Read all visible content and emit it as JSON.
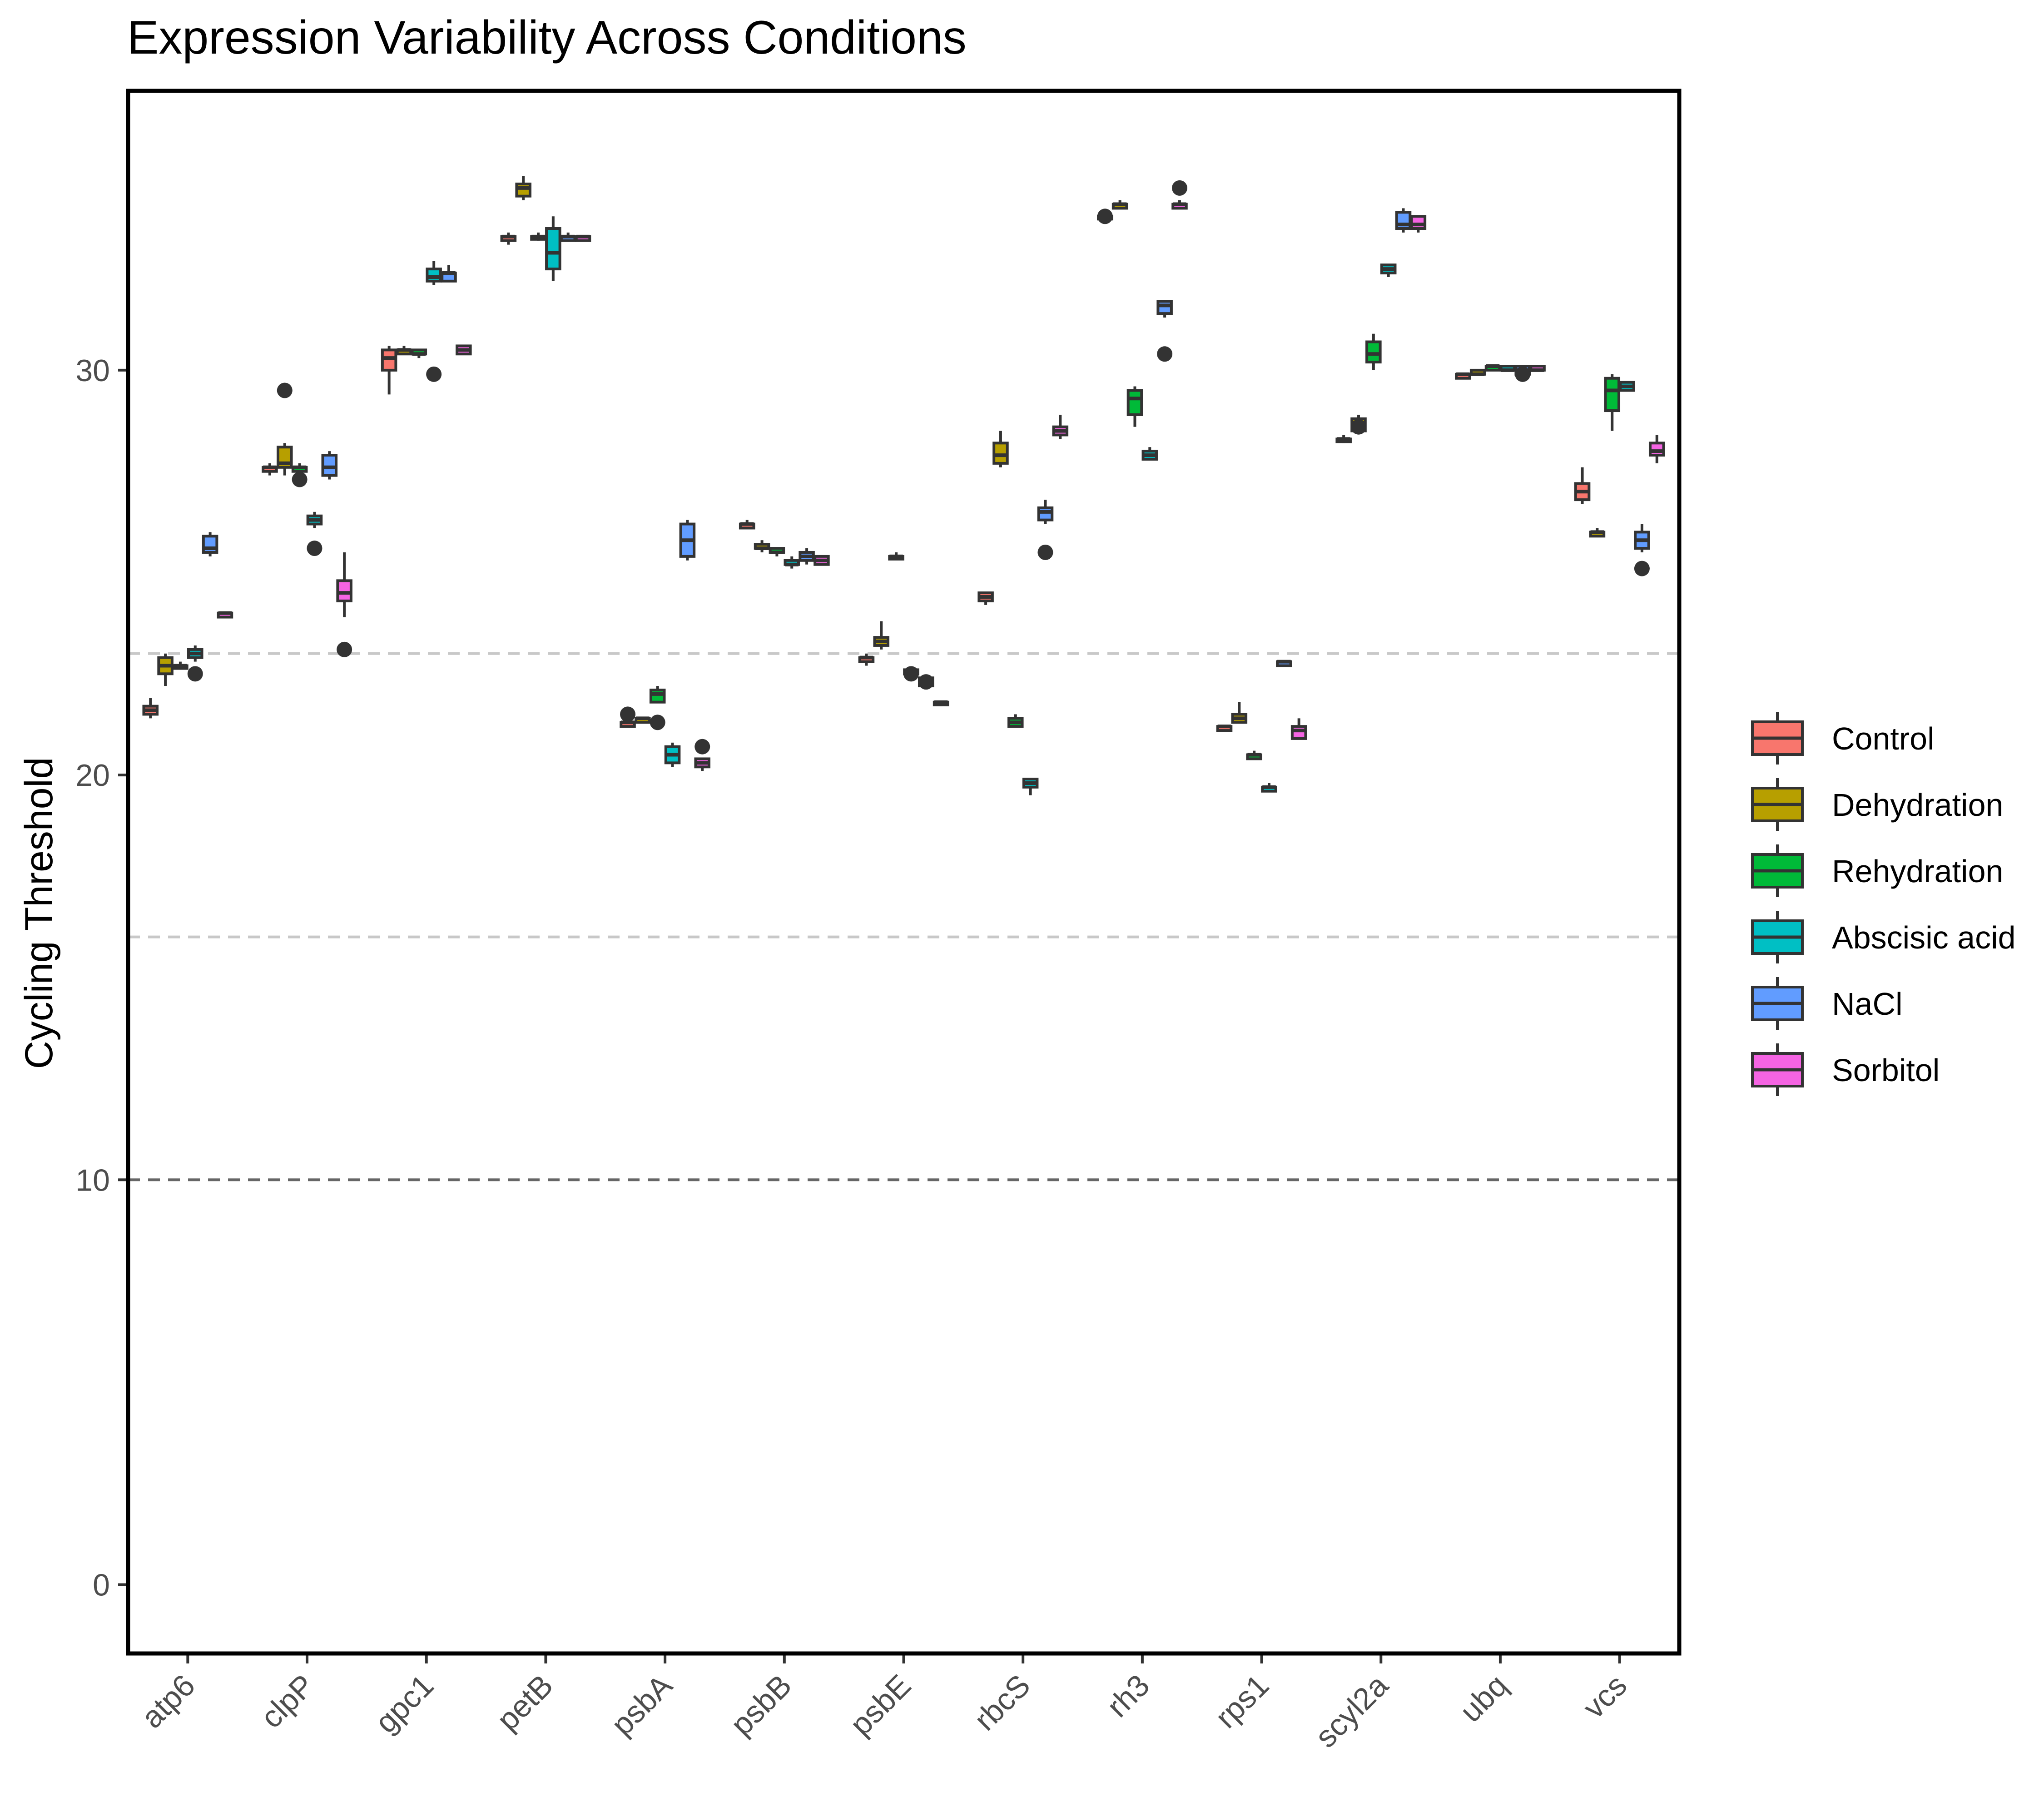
{
  "chart_data": {
    "type": "box",
    "title": "Expression Variability Across Conditions",
    "xlabel": "",
    "ylabel": "Cycling Threshold",
    "ylim": [
      -1.7,
      36.9
    ],
    "yticks": [
      0,
      10,
      20,
      30
    ],
    "grid": false,
    "legend_position": "right",
    "reference_lines": [
      {
        "y": 10,
        "color": "#666666"
      },
      {
        "y": 16,
        "color": "#c8c8c8"
      },
      {
        "y": 23,
        "color": "#c8c8c8"
      }
    ],
    "categories": [
      "atp6",
      "clpP",
      "gpc1",
      "petB",
      "psbA",
      "psbB",
      "psbE",
      "rbcS",
      "rh3",
      "rps1",
      "scyl2a",
      "ubq",
      "vcs"
    ],
    "series": [
      {
        "name": "Control",
        "color": "#F8766D",
        "boxes": [
          {
            "min": 21.4,
            "q1": 21.5,
            "median": 21.6,
            "q3": 21.7,
            "max": 21.9
          },
          {
            "min": 27.4,
            "q1": 27.5,
            "median": 27.6,
            "q3": 27.6,
            "max": 27.7
          },
          {
            "min": 29.4,
            "q1": 30.0,
            "median": 30.3,
            "q3": 30.5,
            "max": 30.6
          },
          {
            "min": 33.1,
            "q1": 33.2,
            "median": 33.3,
            "q3": 33.3,
            "max": 33.4
          },
          {
            "min": 21.2,
            "q1": 21.2,
            "median": 21.3,
            "q3": 21.3,
            "max": 21.4,
            "outliers": [
              21.5
            ]
          },
          {
            "min": 26.1,
            "q1": 26.1,
            "median": 26.2,
            "q3": 26.2,
            "max": 26.3
          },
          {
            "min": 22.7,
            "q1": 22.8,
            "median": 22.9,
            "q3": 22.9,
            "max": 23.0
          },
          {
            "min": 24.2,
            "q1": 24.3,
            "median": 24.4,
            "q3": 24.5,
            "max": 24.5
          },
          {
            "min": 33.8,
            "q1": 33.8,
            "median": 33.8,
            "q3": 33.8,
            "max": 33.8,
            "outliers": [
              33.8
            ]
          },
          {
            "min": 21.1,
            "q1": 21.1,
            "median": 21.2,
            "q3": 21.2,
            "max": 21.2
          },
          {
            "min": 28.2,
            "q1": 28.3,
            "median": 28.3,
            "q3": 28.3,
            "max": 28.4
          },
          {
            "min": 29.8,
            "q1": 29.8,
            "median": 29.9,
            "q3": 29.9,
            "max": 29.9
          },
          {
            "min": 26.7,
            "q1": 26.8,
            "median": 27.0,
            "q3": 27.2,
            "max": 27.6
          }
        ]
      },
      {
        "name": "Dehydration",
        "color": "#B79F00",
        "boxes": [
          {
            "min": 22.2,
            "q1": 22.5,
            "median": 22.7,
            "q3": 22.9,
            "max": 23.0
          },
          {
            "min": 27.4,
            "q1": 27.6,
            "median": 27.7,
            "q3": 28.1,
            "max": 28.2,
            "outliers": [
              29.5
            ]
          },
          {
            "min": 30.4,
            "q1": 30.4,
            "median": 30.5,
            "q3": 30.5,
            "max": 30.6
          },
          {
            "min": 34.2,
            "q1": 34.3,
            "median": 34.5,
            "q3": 34.6,
            "max": 34.8
          },
          {
            "min": 21.3,
            "q1": 21.3,
            "median": 21.4,
            "q3": 21.4,
            "max": 21.4
          },
          {
            "min": 25.5,
            "q1": 25.6,
            "median": 25.6,
            "q3": 25.7,
            "max": 25.8
          },
          {
            "min": 23.1,
            "q1": 23.2,
            "median": 23.3,
            "q3": 23.4,
            "max": 23.8
          },
          {
            "min": 27.6,
            "q1": 27.7,
            "median": 27.9,
            "q3": 28.2,
            "max": 28.5
          },
          {
            "min": 34.0,
            "q1": 34.0,
            "median": 34.1,
            "q3": 34.1,
            "max": 34.2
          },
          {
            "min": 21.3,
            "q1": 21.3,
            "median": 21.4,
            "q3": 21.5,
            "max": 21.8
          },
          {
            "min": 28.5,
            "q1": 28.5,
            "median": 28.7,
            "q3": 28.8,
            "max": 28.9,
            "outliers": [
              28.6
            ]
          },
          {
            "min": 29.9,
            "q1": 29.9,
            "median": 29.9,
            "q3": 30.0,
            "max": 30.0
          },
          {
            "min": 25.9,
            "q1": 25.9,
            "median": 26.0,
            "q3": 26.0,
            "max": 26.1
          }
        ]
      },
      {
        "name": "Rehydration",
        "color": "#00BA38",
        "boxes": [
          {
            "min": 22.7,
            "q1": 22.7,
            "median": 22.7,
            "q3": 22.7,
            "max": 22.8
          },
          {
            "min": 27.4,
            "q1": 27.5,
            "median": 27.6,
            "q3": 27.6,
            "max": 27.7,
            "outliers": [
              27.3
            ]
          },
          {
            "min": 30.3,
            "q1": 30.4,
            "median": 30.4,
            "q3": 30.5,
            "max": 30.5
          },
          {
            "min": 33.2,
            "q1": 33.3,
            "median": 33.3,
            "q3": 33.3,
            "max": 33.4
          },
          {
            "min": 21.8,
            "q1": 21.8,
            "median": 22.0,
            "q3": 22.1,
            "max": 22.2,
            "outliers": [
              21.3
            ]
          },
          {
            "min": 25.4,
            "q1": 25.5,
            "median": 25.5,
            "q3": 25.6,
            "max": 25.6
          },
          {
            "min": 25.4,
            "q1": 25.4,
            "median": 25.4,
            "q3": 25.4,
            "max": 25.5
          },
          {
            "min": 21.2,
            "q1": 21.2,
            "median": 21.3,
            "q3": 21.4,
            "max": 21.5
          },
          {
            "min": 28.6,
            "q1": 28.9,
            "median": 29.3,
            "q3": 29.5,
            "max": 29.6
          },
          {
            "min": 20.4,
            "q1": 20.4,
            "median": 20.5,
            "q3": 20.5,
            "max": 20.6
          },
          {
            "min": 30.0,
            "q1": 30.2,
            "median": 30.4,
            "q3": 30.7,
            "max": 30.9
          },
          {
            "min": 30.0,
            "q1": 30.0,
            "median": 30.1,
            "q3": 30.1,
            "max": 30.1
          },
          {
            "min": 28.5,
            "q1": 29.0,
            "median": 29.5,
            "q3": 29.8,
            "max": 29.9
          }
        ]
      },
      {
        "name": "Abscisic acid",
        "color": "#00BFC4",
        "boxes": [
          {
            "min": 22.8,
            "q1": 22.9,
            "median": 23.0,
            "q3": 23.1,
            "max": 23.2,
            "outliers": [
              22.5
            ]
          },
          {
            "min": 26.1,
            "q1": 26.2,
            "median": 26.3,
            "q3": 26.4,
            "max": 26.5,
            "outliers": [
              25.6
            ]
          },
          {
            "min": 32.1,
            "q1": 32.2,
            "median": 32.3,
            "q3": 32.5,
            "max": 32.7,
            "outliers": [
              29.9
            ]
          },
          {
            "min": 32.2,
            "q1": 32.5,
            "median": 32.9,
            "q3": 33.5,
            "max": 33.8
          },
          {
            "min": 20.2,
            "q1": 20.3,
            "median": 20.5,
            "q3": 20.7,
            "max": 20.8
          },
          {
            "min": 25.1,
            "q1": 25.2,
            "median": 25.2,
            "q3": 25.3,
            "max": 25.4
          },
          {
            "min": 22.4,
            "q1": 22.5,
            "median": 22.5,
            "q3": 22.6,
            "max": 22.6,
            "outliers": [
              22.5
            ]
          },
          {
            "min": 19.5,
            "q1": 19.7,
            "median": 19.8,
            "q3": 19.9,
            "max": 19.9
          },
          {
            "min": 27.8,
            "q1": 27.8,
            "median": 27.9,
            "q3": 28.0,
            "max": 28.1
          },
          {
            "min": 19.6,
            "q1": 19.6,
            "median": 19.7,
            "q3": 19.7,
            "max": 19.8
          },
          {
            "min": 32.3,
            "q1": 32.4,
            "median": 32.5,
            "q3": 32.6,
            "max": 32.6
          },
          {
            "min": 30.0,
            "q1": 30.0,
            "median": 30.0,
            "q3": 30.1,
            "max": 30.1
          },
          {
            "min": 29.5,
            "q1": 29.5,
            "median": 29.6,
            "q3": 29.7,
            "max": 29.7
          }
        ]
      },
      {
        "name": "NaCl",
        "color": "#619CFF",
        "boxes": [
          {
            "min": 25.4,
            "q1": 25.5,
            "median": 25.6,
            "q3": 25.9,
            "max": 26.0
          },
          {
            "min": 27.3,
            "q1": 27.4,
            "median": 27.6,
            "q3": 27.9,
            "max": 28.0
          },
          {
            "min": 32.2,
            "q1": 32.2,
            "median": 32.4,
            "q3": 32.4,
            "max": 32.6
          },
          {
            "min": 33.2,
            "q1": 33.2,
            "median": 33.3,
            "q3": 33.3,
            "max": 33.4
          },
          {
            "min": 25.3,
            "q1": 25.4,
            "median": 25.8,
            "q3": 26.2,
            "max": 26.3
          },
          {
            "min": 25.2,
            "q1": 25.3,
            "median": 25.4,
            "q3": 25.5,
            "max": 25.6
          },
          {
            "min": 22.2,
            "q1": 22.2,
            "median": 22.3,
            "q3": 22.4,
            "max": 22.4,
            "outliers": [
              22.3
            ]
          },
          {
            "min": 26.2,
            "q1": 26.3,
            "median": 26.5,
            "q3": 26.6,
            "max": 26.8,
            "outliers": [
              25.5
            ]
          },
          {
            "min": 31.3,
            "q1": 31.4,
            "median": 31.6,
            "q3": 31.7,
            "max": 31.7,
            "outliers": [
              30.4
            ]
          },
          {
            "min": 22.7,
            "q1": 22.7,
            "median": 22.8,
            "q3": 22.8,
            "max": 22.8
          },
          {
            "min": 33.4,
            "q1": 33.5,
            "median": 33.6,
            "q3": 33.9,
            "max": 34.0
          },
          {
            "min": 29.9,
            "q1": 29.9,
            "median": 30.0,
            "q3": 30.1,
            "max": 30.1,
            "outliers": [
              29.9
            ]
          },
          {
            "min": 25.5,
            "q1": 25.6,
            "median": 25.8,
            "q3": 26.0,
            "max": 26.2,
            "outliers": [
              25.1
            ]
          }
        ]
      },
      {
        "name": "Sorbitol",
        "color": "#F564E3",
        "boxes": [
          {
            "min": 23.9,
            "q1": 23.9,
            "median": 24.0,
            "q3": 24.0,
            "max": 24.0
          },
          {
            "min": 23.9,
            "q1": 24.3,
            "median": 24.5,
            "q3": 24.8,
            "max": 25.5,
            "outliers": [
              23.1
            ]
          },
          {
            "min": 30.4,
            "q1": 30.4,
            "median": 30.5,
            "q3": 30.6,
            "max": 30.6
          },
          {
            "min": 33.2,
            "q1": 33.2,
            "median": 33.3,
            "q3": 33.3,
            "max": 33.3
          },
          {
            "min": 20.1,
            "q1": 20.2,
            "median": 20.3,
            "q3": 20.4,
            "max": 20.4,
            "outliers": [
              20.7
            ]
          },
          {
            "min": 25.2,
            "q1": 25.2,
            "median": 25.3,
            "q3": 25.4,
            "max": 25.4
          },
          {
            "min": 21.7,
            "q1": 21.8,
            "median": 21.8,
            "q3": 21.8,
            "max": 21.8
          },
          {
            "min": 28.3,
            "q1": 28.4,
            "median": 28.5,
            "q3": 28.6,
            "max": 28.9
          },
          {
            "min": 34.0,
            "q1": 34.0,
            "median": 34.1,
            "q3": 34.1,
            "max": 34.2,
            "outliers": [
              34.5
            ]
          },
          {
            "min": 20.9,
            "q1": 20.9,
            "median": 21.1,
            "q3": 21.2,
            "max": 21.4
          },
          {
            "min": 33.4,
            "q1": 33.5,
            "median": 33.6,
            "q3": 33.8,
            "max": 33.8
          },
          {
            "min": 30.0,
            "q1": 30.0,
            "median": 30.0,
            "q3": 30.1,
            "max": 30.1
          },
          {
            "min": 27.7,
            "q1": 27.9,
            "median": 28.0,
            "q3": 28.2,
            "max": 28.4
          }
        ]
      }
    ]
  }
}
